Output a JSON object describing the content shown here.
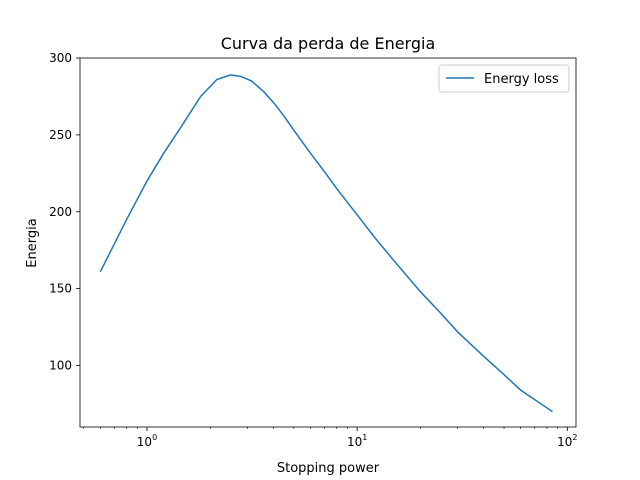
{
  "chart_data": {
    "type": "line",
    "title": "Curva da perda de Energia",
    "xlabel": "Stopping power",
    "ylabel": "Energia",
    "xscale": "log",
    "xlim": [
      0.48,
      110
    ],
    "ylim": [
      60,
      300
    ],
    "xticks": [
      {
        "base": "10",
        "exp": "0",
        "value": 1
      },
      {
        "base": "10",
        "exp": "1",
        "value": 10
      },
      {
        "base": "10",
        "exp": "2",
        "value": 100
      }
    ],
    "yticks": [
      "100",
      "150",
      "200",
      "250",
      "300"
    ],
    "legend": {
      "position": "top-right"
    },
    "grid": false,
    "series": [
      {
        "name": "Energy loss",
        "color": "#1f77b4",
        "x": [
          0.6,
          0.8,
          1.0,
          1.2,
          1.45,
          1.8,
          2.15,
          2.5,
          2.8,
          3.15,
          3.6,
          4.0,
          4.5,
          5.0,
          6.0,
          7.0,
          8.0,
          10.0,
          12.0,
          15.0,
          20.0,
          25.0,
          30.0,
          40.0,
          50.0,
          60.0,
          75.0,
          85.0
        ],
        "y": [
          161,
          195,
          220,
          238,
          255,
          275,
          286,
          289,
          288,
          285,
          278,
          271,
          262,
          253,
          238,
          226,
          215,
          198,
          184,
          168,
          148,
          134,
          122,
          106,
          94,
          84,
          75,
          70
        ]
      }
    ]
  }
}
